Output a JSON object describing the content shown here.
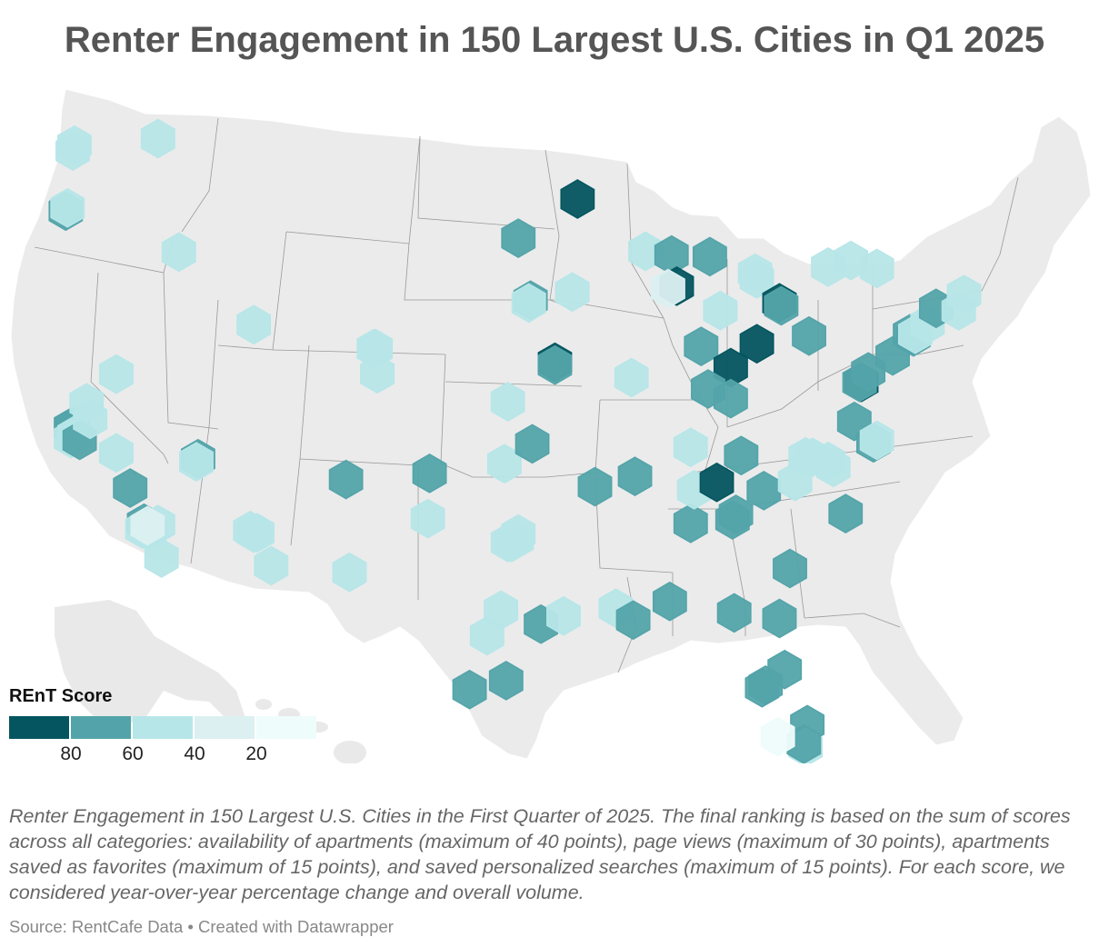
{
  "title": "Renter Engagement in 150 Largest U.S. Cities in Q1 2025",
  "legend": {
    "title": "REnT Score",
    "ticks": [
      "80",
      "60",
      "40",
      "20"
    ],
    "bins": [
      {
        "min": 80,
        "color": "#045560"
      },
      {
        "min": 60,
        "color": "#53a4aa"
      },
      {
        "min": 40,
        "color": "#b7e6e8"
      },
      {
        "min": 20,
        "color": "#dcf0f1"
      },
      {
        "min": 0,
        "color": "#effcfc"
      }
    ]
  },
  "description": "Renter Engagement in 150 Largest U.S. Cities in the First Quarter of 2025. The final ranking is based on the sum of scores across all categories: availability of apartments (maximum of 40 points), page views (maximum of 30 points), apartments saved as favorites (maximum of 15 points), and saved personalized searches (maximum of 15 points). For each score, we considered year-over-year percentage change and overall volume.",
  "source": "Source: RentCafe Data • Created with Datawrapper",
  "cities": [
    {
      "lon": -122.2,
      "lat": 47.8,
      "score": 45
    },
    {
      "lon": -122.3,
      "lat": 47.6,
      "score": 48
    },
    {
      "lon": -117.4,
      "lat": 47.7,
      "score": 45
    },
    {
      "lon": -122.7,
      "lat": 45.5,
      "score": 65
    },
    {
      "lon": -122.6,
      "lat": 45.6,
      "score": 48
    },
    {
      "lon": -116.2,
      "lat": 43.6,
      "score": 45
    },
    {
      "lon": -119.8,
      "lat": 39.5,
      "score": 45
    },
    {
      "lon": -111.9,
      "lat": 40.8,
      "score": 45
    },
    {
      "lon": -122.4,
      "lat": 37.8,
      "score": 62
    },
    {
      "lon": -122.3,
      "lat": 37.8,
      "score": 62
    },
    {
      "lon": -122.2,
      "lat": 37.5,
      "score": 48
    },
    {
      "lon": -122.4,
      "lat": 37.4,
      "score": 45
    },
    {
      "lon": -121.9,
      "lat": 37.3,
      "score": 62
    },
    {
      "lon": -121.5,
      "lat": 38.6,
      "score": 45
    },
    {
      "lon": -121.3,
      "lat": 38.0,
      "score": 45
    },
    {
      "lon": -119.8,
      "lat": 36.7,
      "score": 45
    },
    {
      "lon": -119.0,
      "lat": 35.4,
      "score": 62
    },
    {
      "lon": -118.2,
      "lat": 34.1,
      "score": 62
    },
    {
      "lon": -118.3,
      "lat": 33.9,
      "score": 45
    },
    {
      "lon": -117.9,
      "lat": 33.8,
      "score": 45
    },
    {
      "lon": -117.4,
      "lat": 34.0,
      "score": 45
    },
    {
      "lon": -118.0,
      "lat": 34.0,
      "score": 28
    },
    {
      "lon": -117.2,
      "lat": 32.8,
      "score": 45
    },
    {
      "lon": -115.1,
      "lat": 36.2,
      "score": 62
    },
    {
      "lon": -115.2,
      "lat": 36.1,
      "score": 45
    },
    {
      "lon": -112.1,
      "lat": 33.5,
      "score": 45
    },
    {
      "lon": -111.9,
      "lat": 33.4,
      "score": 45
    },
    {
      "lon": -111.7,
      "lat": 33.4,
      "score": 45
    },
    {
      "lon": -110.9,
      "lat": 32.2,
      "score": 45
    },
    {
      "lon": -106.6,
      "lat": 35.1,
      "score": 62
    },
    {
      "lon": -106.4,
      "lat": 31.8,
      "score": 45
    },
    {
      "lon": -105.0,
      "lat": 39.7,
      "score": 45
    },
    {
      "lon": -104.9,
      "lat": 39.7,
      "score": 45
    },
    {
      "lon": -104.8,
      "lat": 38.8,
      "score": 45
    },
    {
      "lon": -101.8,
      "lat": 35.2,
      "score": 62
    },
    {
      "lon": -101.9,
      "lat": 33.6,
      "score": 45
    },
    {
      "lon": -97.5,
      "lat": 35.5,
      "score": 45
    },
    {
      "lon": -95.9,
      "lat": 36.2,
      "score": 62
    },
    {
      "lon": -97.3,
      "lat": 37.7,
      "score": 45
    },
    {
      "lon": -96.0,
      "lat": 41.3,
      "score": 62
    },
    {
      "lon": -96.1,
      "lat": 41.2,
      "score": 45
    },
    {
      "lon": -96.7,
      "lat": 43.5,
      "score": 62
    },
    {
      "lon": -93.3,
      "lat": 44.9,
      "score": 85
    },
    {
      "lon": -93.6,
      "lat": 41.6,
      "score": 45
    },
    {
      "lon": -94.6,
      "lat": 39.1,
      "score": 82
    },
    {
      "lon": -94.6,
      "lat": 39.0,
      "score": 62
    },
    {
      "lon": -90.2,
      "lat": 38.6,
      "score": 45
    },
    {
      "lon": -89.4,
      "lat": 43.1,
      "score": 45
    },
    {
      "lon": -87.9,
      "lat": 43.0,
      "score": 62
    },
    {
      "lon": -87.6,
      "lat": 41.9,
      "score": 85
    },
    {
      "lon": -88.1,
      "lat": 41.8,
      "score": 30
    },
    {
      "lon": -85.7,
      "lat": 43.0,
      "score": 62
    },
    {
      "lon": -86.2,
      "lat": 39.8,
      "score": 62
    },
    {
      "lon": -85.1,
      "lat": 41.1,
      "score": 45
    },
    {
      "lon": -83.0,
      "lat": 42.3,
      "score": 45
    },
    {
      "lon": -83.1,
      "lat": 42.5,
      "score": 45
    },
    {
      "lon": -81.7,
      "lat": 41.5,
      "score": 85
    },
    {
      "lon": -81.6,
      "lat": 41.4,
      "score": 62
    },
    {
      "lon": -83.0,
      "lat": 40.0,
      "score": 85
    },
    {
      "lon": -84.5,
      "lat": 39.1,
      "score": 85
    },
    {
      "lon": -80.0,
      "lat": 40.4,
      "score": 62
    },
    {
      "lon": -85.8,
      "lat": 38.3,
      "score": 62
    },
    {
      "lon": -84.5,
      "lat": 38.0,
      "score": 62
    },
    {
      "lon": -86.8,
      "lat": 36.2,
      "score": 45
    },
    {
      "lon": -90.0,
      "lat": 35.1,
      "score": 62
    },
    {
      "lon": -92.3,
      "lat": 34.7,
      "score": 62
    },
    {
      "lon": -95.4,
      "lat": 29.8,
      "score": 62
    },
    {
      "lon": -97.7,
      "lat": 30.3,
      "score": 45
    },
    {
      "lon": -98.5,
      "lat": 29.4,
      "score": 45
    },
    {
      "lon": -96.8,
      "lat": 32.8,
      "score": 45
    },
    {
      "lon": -97.3,
      "lat": 32.7,
      "score": 45
    },
    {
      "lon": -97.1,
      "lat": 32.7,
      "score": 45
    },
    {
      "lon": -96.7,
      "lat": 33.0,
      "score": 45
    },
    {
      "lon": -97.4,
      "lat": 27.8,
      "score": 62
    },
    {
      "lon": -99.5,
      "lat": 27.5,
      "score": 62
    },
    {
      "lon": -94.1,
      "lat": 30.1,
      "score": 45
    },
    {
      "lon": -91.1,
      "lat": 30.4,
      "score": 45
    },
    {
      "lon": -90.1,
      "lat": 30.0,
      "score": 62
    },
    {
      "lon": -88.0,
      "lat": 30.7,
      "score": 62
    },
    {
      "lon": -86.8,
      "lat": 33.5,
      "score": 62
    },
    {
      "lon": -86.6,
      "lat": 34.7,
      "score": 45
    },
    {
      "lon": -85.3,
      "lat": 35.0,
      "score": 85
    },
    {
      "lon": -84.4,
      "lat": 33.7,
      "score": 62
    },
    {
      "lon": -84.2,
      "lat": 33.9,
      "score": 62
    },
    {
      "lon": -83.9,
      "lat": 36.0,
      "score": 62
    },
    {
      "lon": -82.6,
      "lat": 34.8,
      "score": 62
    },
    {
      "lon": -81.1,
      "lat": 32.1,
      "score": 62
    },
    {
      "lon": -81.7,
      "lat": 30.3,
      "score": 62
    },
    {
      "lon": -84.3,
      "lat": 30.4,
      "score": 62
    },
    {
      "lon": -82.5,
      "lat": 27.9,
      "score": 62
    },
    {
      "lon": -82.7,
      "lat": 27.8,
      "score": 62
    },
    {
      "lon": -81.4,
      "lat": 28.5,
      "score": 62
    },
    {
      "lon": -80.1,
      "lat": 26.6,
      "score": 62
    },
    {
      "lon": -80.2,
      "lat": 25.8,
      "score": 45
    },
    {
      "lon": -80.3,
      "lat": 25.9,
      "score": 62
    },
    {
      "lon": -81.8,
      "lat": 26.1,
      "score": 10
    },
    {
      "lon": -80.8,
      "lat": 35.2,
      "score": 45
    },
    {
      "lon": -80.2,
      "lat": 36.1,
      "score": 45
    },
    {
      "lon": -79.8,
      "lat": 36.1,
      "score": 45
    },
    {
      "lon": -78.6,
      "lat": 35.8,
      "score": 45
    },
    {
      "lon": -78.9,
      "lat": 36.0,
      "score": 45
    },
    {
      "lon": -77.9,
      "lat": 34.2,
      "score": 62
    },
    {
      "lon": -77.4,
      "lat": 37.5,
      "score": 62
    },
    {
      "lon": -76.3,
      "lat": 36.8,
      "score": 62
    },
    {
      "lon": -76.1,
      "lat": 36.9,
      "score": 45
    },
    {
      "lon": -77.0,
      "lat": 38.9,
      "score": 85
    },
    {
      "lon": -77.1,
      "lat": 38.9,
      "score": 62
    },
    {
      "lon": -76.6,
      "lat": 39.3,
      "score": 62
    },
    {
      "lon": -75.2,
      "lat": 39.95,
      "score": 62
    },
    {
      "lon": -74.0,
      "lat": 40.7,
      "score": 62
    },
    {
      "lon": -74.2,
      "lat": 40.8,
      "score": 62
    },
    {
      "lon": -73.9,
      "lat": 40.8,
      "score": 45
    },
    {
      "lon": -73.2,
      "lat": 41.2,
      "score": 45
    },
    {
      "lon": -72.7,
      "lat": 41.8,
      "score": 62
    },
    {
      "lon": -71.1,
      "lat": 42.4,
      "score": 45
    },
    {
      "lon": -71.4,
      "lat": 41.8,
      "score": 45
    },
    {
      "lon": -76.1,
      "lat": 43.0,
      "score": 45
    },
    {
      "lon": -77.6,
      "lat": 43.2,
      "score": 45
    },
    {
      "lon": -78.9,
      "lat": 42.9,
      "score": 45
    }
  ]
}
